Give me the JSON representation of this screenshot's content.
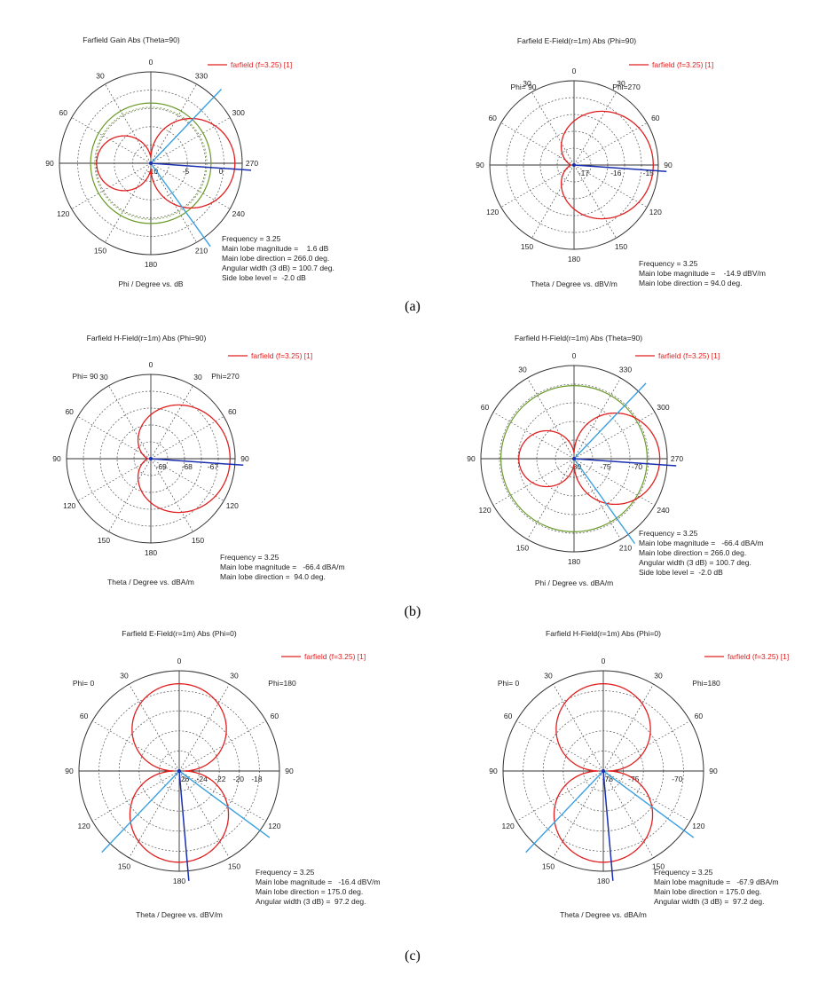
{
  "captions": [
    "(a)",
    "(b)",
    "(c)"
  ],
  "chart_data": [
    {
      "type": "polar",
      "title": "Farfield Gain Abs (Theta=90)",
      "axis_label": "Phi / Degree vs. dB",
      "legend": "farfield (f=3.25) [1]",
      "side_labels": [],
      "angle_labels": [
        "0",
        "30",
        "60",
        "90",
        "120",
        "150",
        "180",
        "210",
        "240",
        "270",
        "300",
        "330"
      ],
      "angle_convention": "azimuth-cw-from-right",
      "radial_ticks": [
        "-10",
        "-5",
        "0"
      ],
      "radial_min": -10,
      "radial_max": 2,
      "pattern": "dipole-cos-right",
      "main_lobe_angle": 266.0,
      "beamwidth_lines": [
        215.6,
        316.4
      ],
      "threshold_circle": -1.4,
      "threshold_circle2": -2.0,
      "info": [
        "Frequency = 3.25",
        "Main lobe magnitude =    1.6 dB",
        "Main lobe direction = 266.0 deg.",
        "Angular width (3 dB) = 100.7 deg.",
        "Side lobe level =  -2.0 dB"
      ]
    },
    {
      "type": "polar",
      "title": "Farfield E-Field(r=1m) Abs (Phi=90)",
      "axis_label": "Theta / Degree vs. dBV/m",
      "legend": "farfield (f=3.25) [1]",
      "side_labels": [
        "Phi= 90",
        "Phi=270"
      ],
      "angle_labels": [
        "0",
        "30",
        "60",
        "90",
        "120",
        "150",
        "180",
        "150",
        "120",
        "90",
        "60",
        "30"
      ],
      "angle_convention": "theta-split",
      "radial_ticks": [
        "-17",
        "-16",
        "-15"
      ],
      "radial_min": -17.3,
      "radial_max": -14.9,
      "pattern": "circle-right",
      "main_lobe_angle": 94.0,
      "info": [
        "Frequency = 3.25",
        "Main lobe magnitude =    -14.9 dBV/m",
        "Main lobe direction = 94.0 deg."
      ]
    },
    {
      "type": "polar",
      "title": "Farfield H-Field(r=1m) Abs (Phi=90)",
      "axis_label": "Theta / Degree vs. dBA/m",
      "legend": "farfield (f=3.25) [1]",
      "side_labels": [
        "Phi= 90",
        "Phi=270"
      ],
      "angle_labels": [
        "0",
        "30",
        "60",
        "90",
        "120",
        "150",
        "180",
        "150",
        "120",
        "90",
        "60",
        "30"
      ],
      "angle_convention": "theta-split",
      "radial_ticks": [
        "-69",
        "-68",
        "-67"
      ],
      "radial_min": -69.4,
      "radial_max": -66.4,
      "pattern": "circle-right",
      "main_lobe_angle": 94.0,
      "info": [
        "Frequency = 3.25",
        "Main lobe magnitude =   -66.4 dBA/m",
        "Main lobe direction =  94.0 deg."
      ]
    },
    {
      "type": "polar",
      "title": "Farfield H-Field(r=1m) Abs (Theta=90)",
      "axis_label": "Phi / Degree vs. dBA/m",
      "legend": "farfield (f=3.25) [1]",
      "side_labels": [],
      "angle_labels": [
        "0",
        "30",
        "60",
        "90",
        "120",
        "150",
        "180",
        "210",
        "240",
        "270",
        "300",
        "330"
      ],
      "angle_convention": "azimuth-cw-from-right",
      "radial_ticks": [
        "-80",
        "-75",
        "-70"
      ],
      "radial_min": -80,
      "radial_max": -66.4,
      "pattern": "dipole-cos-right",
      "main_lobe_angle": 266.0,
      "beamwidth_lines": [
        215.6,
        316.4
      ],
      "threshold_circle": -68.4,
      "info": [
        "Frequency = 3.25",
        "Main lobe magnitude =   -66.4 dBA/m",
        "Main lobe direction = 266.0 deg.",
        "Angular width (3 dB) = 100.7 deg.",
        "Side lobe level =  -2.0 dB"
      ]
    },
    {
      "type": "polar",
      "title": "Farfield E-Field(r=1m) Abs (Phi=0)",
      "axis_label": "Theta / Degree vs. dBV/m",
      "legend": "farfield (f=3.25) [1]",
      "side_labels": [
        "Phi=  0",
        "Phi=180"
      ],
      "angle_labels": [
        "0",
        "30",
        "60",
        "90",
        "120",
        "150",
        "180",
        "150",
        "120",
        "90",
        "60",
        "30"
      ],
      "angle_convention": "theta-split",
      "radial_ticks": [
        "-26",
        "-24",
        "-22",
        "-20",
        "-18"
      ],
      "radial_min": -26.5,
      "radial_max": -16.4,
      "pattern": "dipole-vertical",
      "main_lobe_angle": 175.0,
      "beamwidth_lines": [
        126.4,
        223.6
      ],
      "info": [
        "Frequency = 3.25",
        "Main lobe magnitude =   -16.4 dBV/m",
        "Main lobe direction = 175.0 deg.",
        "Angular width (3 dB) =  97.2 deg."
      ]
    },
    {
      "type": "polar",
      "title": "Farfield H-Field(r=1m) Abs (Phi=0)",
      "axis_label": "Theta / Degree vs. dBA/m",
      "legend": "farfield (f=3.25) [1]",
      "side_labels": [
        "Phi=  0",
        "Phi=180"
      ],
      "angle_labels": [
        "0",
        "30",
        "60",
        "90",
        "120",
        "150",
        "180",
        "150",
        "120",
        "90",
        "60",
        "30"
      ],
      "angle_convention": "theta-split",
      "radial_ticks": [
        "-78",
        "-75",
        "-70"
      ],
      "radial_min": -78.5,
      "radial_max": -67.9,
      "pattern": "dipole-vertical",
      "main_lobe_angle": 175.0,
      "beamwidth_lines": [
        126.4,
        223.6
      ],
      "info": [
        "Frequency = 3.25",
        "Main lobe magnitude =   -67.9 dBA/m",
        "Main lobe direction = 175.0 deg.",
        "Angular width (3 dB) =  97.2 deg."
      ]
    }
  ]
}
